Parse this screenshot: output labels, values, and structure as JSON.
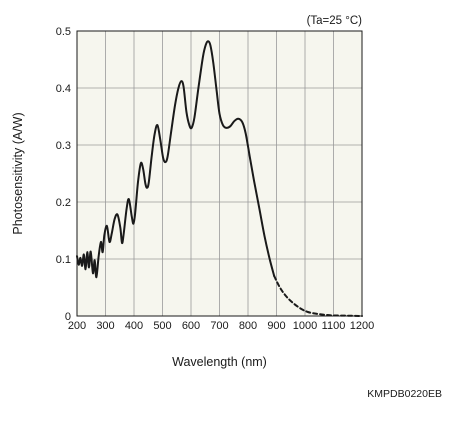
{
  "chart_data": {
    "type": "line",
    "title": "",
    "condition": "(Ta=25 °C)",
    "xlabel": "Wavelength (nm)",
    "ylabel": "Photosensitivity (A/W)",
    "xlim": [
      200,
      1200
    ],
    "ylim": [
      0,
      0.5
    ],
    "xticks": [
      200,
      300,
      400,
      500,
      600,
      700,
      800,
      900,
      1000,
      1100,
      1200
    ],
    "yticks": [
      0,
      0.1,
      0.2,
      0.3,
      0.4,
      0.5
    ],
    "grid": true,
    "background": "#f6f6ee",
    "line_color": "#1a1a1a",
    "series": [
      {
        "style": "solid",
        "points": [
          [
            200,
            0.105
          ],
          [
            206,
            0.09
          ],
          [
            212,
            0.102
          ],
          [
            218,
            0.088
          ],
          [
            224,
            0.108
          ],
          [
            230,
            0.082
          ],
          [
            236,
            0.112
          ],
          [
            242,
            0.085
          ],
          [
            248,
            0.113
          ],
          [
            256,
            0.075
          ],
          [
            262,
            0.098
          ],
          [
            268,
            0.068
          ],
          [
            276,
            0.105
          ],
          [
            284,
            0.13
          ],
          [
            290,
            0.112
          ],
          [
            296,
            0.142
          ],
          [
            305,
            0.158
          ],
          [
            314,
            0.13
          ],
          [
            322,
            0.145
          ],
          [
            332,
            0.17
          ],
          [
            342,
            0.178
          ],
          [
            352,
            0.155
          ],
          [
            358,
            0.128
          ],
          [
            364,
            0.145
          ],
          [
            374,
            0.188
          ],
          [
            382,
            0.205
          ],
          [
            392,
            0.175
          ],
          [
            398,
            0.162
          ],
          [
            404,
            0.18
          ],
          [
            414,
            0.235
          ],
          [
            424,
            0.268
          ],
          [
            432,
            0.258
          ],
          [
            440,
            0.232
          ],
          [
            446,
            0.225
          ],
          [
            452,
            0.235
          ],
          [
            462,
            0.28
          ],
          [
            472,
            0.318
          ],
          [
            482,
            0.335
          ],
          [
            492,
            0.31
          ],
          [
            502,
            0.278
          ],
          [
            510,
            0.27
          ],
          [
            518,
            0.28
          ],
          [
            530,
            0.322
          ],
          [
            544,
            0.37
          ],
          [
            556,
            0.4
          ],
          [
            566,
            0.412
          ],
          [
            574,
            0.402
          ],
          [
            584,
            0.358
          ],
          [
            594,
            0.335
          ],
          [
            602,
            0.33
          ],
          [
            612,
            0.348
          ],
          [
            626,
            0.4
          ],
          [
            642,
            0.455
          ],
          [
            652,
            0.476
          ],
          [
            660,
            0.482
          ],
          [
            668,
            0.475
          ],
          [
            678,
            0.445
          ],
          [
            690,
            0.395
          ],
          [
            700,
            0.355
          ],
          [
            712,
            0.335
          ],
          [
            724,
            0.33
          ],
          [
            738,
            0.333
          ],
          [
            752,
            0.342
          ],
          [
            766,
            0.346
          ],
          [
            780,
            0.34
          ],
          [
            792,
            0.32
          ],
          [
            806,
            0.28
          ],
          [
            822,
            0.235
          ],
          [
            840,
            0.188
          ],
          [
            858,
            0.14
          ],
          [
            876,
            0.1
          ],
          [
            892,
            0.07
          ]
        ]
      },
      {
        "style": "dashed",
        "points": [
          [
            892,
            0.07
          ],
          [
            912,
            0.05
          ],
          [
            935,
            0.034
          ],
          [
            960,
            0.022
          ],
          [
            985,
            0.013
          ],
          [
            1010,
            0.007
          ],
          [
            1040,
            0.004
          ],
          [
            1070,
            0.002
          ],
          [
            1100,
            0.001
          ],
          [
            1150,
            0.0005
          ],
          [
            1200,
            0.0
          ]
        ]
      }
    ],
    "code": "KMPDB0220EB"
  }
}
